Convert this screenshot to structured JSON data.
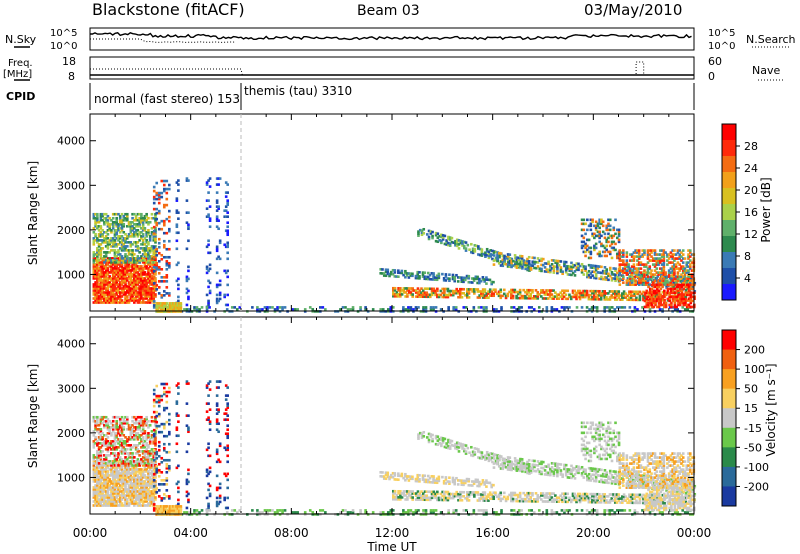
{
  "header": {
    "station": "Blackstone (fitACF)",
    "beam": "Beam 03",
    "date": "03/May/2010"
  },
  "meta_labels": {
    "nsky": "N.Sky",
    "nsearch": "N.Search",
    "freq": "Freq.",
    "mhz": "[MHz]",
    "nave": "Nave",
    "cpid": "CPID"
  },
  "noise_panel": {
    "left_ticks": [
      "10^5",
      "10^0"
    ],
    "right_ticks": [
      "10^5",
      "10^0"
    ]
  },
  "freq_panel": {
    "left_ticks": [
      "18",
      "8"
    ],
    "right_ticks": [
      "60",
      "0"
    ]
  },
  "cpid": {
    "modes": [
      {
        "label": "normal (fast stereo) 153",
        "start_hour": 0,
        "end_hour": 6
      },
      {
        "label": "themis (tau) 3310",
        "start_hour": 6,
        "end_hour": 24
      }
    ]
  },
  "chart_data": [
    {
      "type": "heatmap",
      "parameter": "power",
      "ylabel": "Slant Range [km]",
      "xlabel": "Time UT",
      "ylim": [
        180,
        4600
      ],
      "y_ticks": [
        "4000",
        "3000",
        "2000",
        "1000"
      ],
      "x_ticks": [
        "00:00",
        "04:00",
        "08:00",
        "12:00",
        "16:00",
        "20:00",
        "00:00"
      ],
      "xlim_hours": [
        0,
        24
      ],
      "colorbar": {
        "label": "Power [dB]",
        "range": [
          0,
          32
        ],
        "tick_labels": [
          "28",
          "24",
          "20",
          "16",
          "12",
          "8",
          "4"
        ],
        "colors": [
          "#1a1aff",
          "#1e4fa8",
          "#3a7ab5",
          "#2d8a4e",
          "#5fb06a",
          "#aad14a",
          "#d8c020",
          "#f2a01a",
          "#f46c12",
          "#ff2a0a",
          "#ff0000"
        ]
      }
    },
    {
      "type": "heatmap",
      "parameter": "velocity",
      "ylabel": "Slant Range [km]",
      "xlabel": "Time UT",
      "ylim": [
        180,
        4600
      ],
      "y_ticks": [
        "4000",
        "3000",
        "2000",
        "1000"
      ],
      "x_ticks": [
        "00:00",
        "04:00",
        "08:00",
        "12:00",
        "16:00",
        "20:00",
        "00:00"
      ],
      "xlim_hours": [
        0,
        24
      ],
      "colorbar": {
        "label": "Velocity [m s⁻¹]",
        "tick_labels": [
          "200",
          "100",
          "50",
          "15",
          "-15",
          "-50",
          "-100",
          "-200"
        ],
        "colors": [
          "#1a3aa0",
          "#2a6a9a",
          "#2a8a4a",
          "#6ac84a",
          "#c8c8c8",
          "#f8d060",
          "#f8a020",
          "#f06010",
          "#ff0000"
        ]
      }
    }
  ]
}
